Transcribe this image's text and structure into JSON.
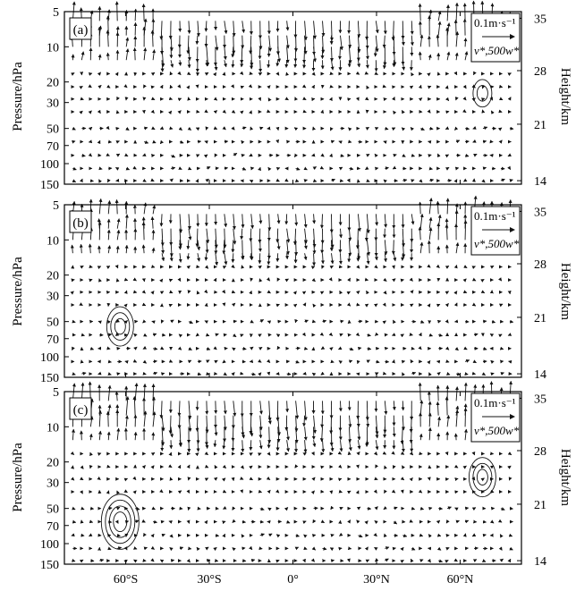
{
  "chart_data": [
    {
      "type": "vector",
      "panel_label": "(a)",
      "ylabel_left": "Pressure/hPa",
      "ylabel_right": "Height/km",
      "y_ticks_left": [
        "5",
        "10",
        "20",
        "30",
        "50",
        "70",
        "100",
        "150"
      ],
      "y_tick_values": [
        5,
        10,
        20,
        30,
        50,
        70,
        100,
        150
      ],
      "y_ticks_right": [
        "35",
        "28",
        "21",
        "14"
      ],
      "y_right_values": [
        35,
        28,
        21,
        14
      ],
      "xlim": [
        -82,
        82
      ],
      "ylim": [
        150,
        5
      ],
      "y_scale": "log",
      "legend": {
        "speed": "0.1m·s⁻¹",
        "components": "v*,500w*"
      },
      "circulation_cells": [
        {
          "center_lat": 68,
          "center_p": 25,
          "radius": "small"
        }
      ]
    },
    {
      "type": "vector",
      "panel_label": "(b)",
      "ylabel_left": "Pressure/hPa",
      "ylabel_right": "Height/km",
      "y_ticks_left": [
        "5",
        "10",
        "20",
        "30",
        "50",
        "70",
        "100",
        "150"
      ],
      "y_tick_values": [
        5,
        10,
        20,
        30,
        50,
        70,
        100,
        150
      ],
      "y_ticks_right": [
        "35",
        "28",
        "21",
        "14"
      ],
      "y_right_values": [
        35,
        28,
        21,
        14
      ],
      "xlim": [
        -82,
        82
      ],
      "ylim": [
        150,
        5
      ],
      "y_scale": "log",
      "legend": {
        "speed": "0.1m·s⁻¹",
        "components": "v*,500w*"
      },
      "circulation_cells": [
        {
          "center_lat": -62,
          "center_p": 55,
          "radius": "medium"
        }
      ]
    },
    {
      "type": "vector",
      "panel_label": "(c)",
      "ylabel_left": "Pressure/hPa",
      "ylabel_right": "Height/km",
      "y_ticks_left": [
        "5",
        "10",
        "20",
        "30",
        "50",
        "70",
        "100",
        "150"
      ],
      "y_tick_values": [
        5,
        10,
        20,
        30,
        50,
        70,
        100,
        150
      ],
      "y_ticks_right": [
        "35",
        "28",
        "21",
        "14"
      ],
      "y_right_values": [
        35,
        28,
        21,
        14
      ],
      "x_ticks": [
        "60°S",
        "30°S",
        "0°",
        "30°N",
        "60°N"
      ],
      "x_tick_values": [
        -60,
        -30,
        0,
        30,
        60
      ],
      "xlim": [
        -82,
        82
      ],
      "ylim": [
        150,
        5
      ],
      "y_scale": "log",
      "legend": {
        "speed": "0.1m·s⁻¹",
        "components": "v*,500w*"
      },
      "circulation_cells": [
        {
          "center_lat": -62,
          "center_p": 65,
          "radius": "large"
        },
        {
          "center_lat": 68,
          "center_p": 27,
          "radius": "medium"
        }
      ]
    }
  ]
}
